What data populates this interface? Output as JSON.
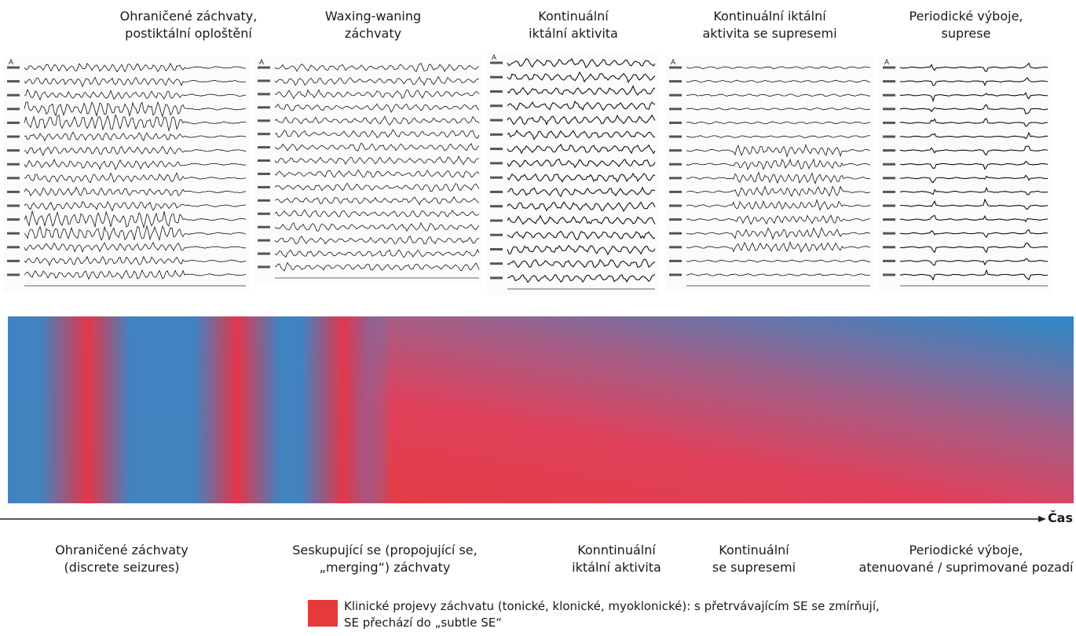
{
  "top_labels": [
    "Ohraničené záchvaty,\npostiktální oploštění",
    "Waxing-waning\nzáchvaty",
    "Kontinuální\niktální aktivita",
    "Kontinuální iktální\naktivita se supresemi",
    "Periodické výboje,\nsuprese"
  ],
  "eeg_panels": [
    {
      "pattern": "discrete-seizures",
      "channels": 16
    },
    {
      "pattern": "waxing-waning",
      "channels": 16
    },
    {
      "pattern": "continuous",
      "channels": 16
    },
    {
      "pattern": "continuous-with-suppressions",
      "channels": 16
    },
    {
      "pattern": "periodic-discharges",
      "channels": 16
    }
  ],
  "axis": {
    "label": "Čas"
  },
  "bottom_labels": [
    "Ohraničené záchvaty\n(discrete seizures)",
    "Seskupující se (propojující se,\n„merging“) záchvaty",
    "Konntinuální\niktální aktivita",
    "Kontinuální\nse supresemi",
    "Periodické výboje,\natenuované / suprimované pozadí"
  ],
  "legend": {
    "text_line1": "Klinické projevy záchvatu (tonické, klonické, myoklonické): s přetrvávajícím SE se zmírňují,",
    "text_line2": "SE přechází do „subtle SE“",
    "color": "#e53a3a"
  },
  "colors": {
    "red": "#e53a3a",
    "blue": "#2a8ac8",
    "purple": "#8a6a9e"
  }
}
